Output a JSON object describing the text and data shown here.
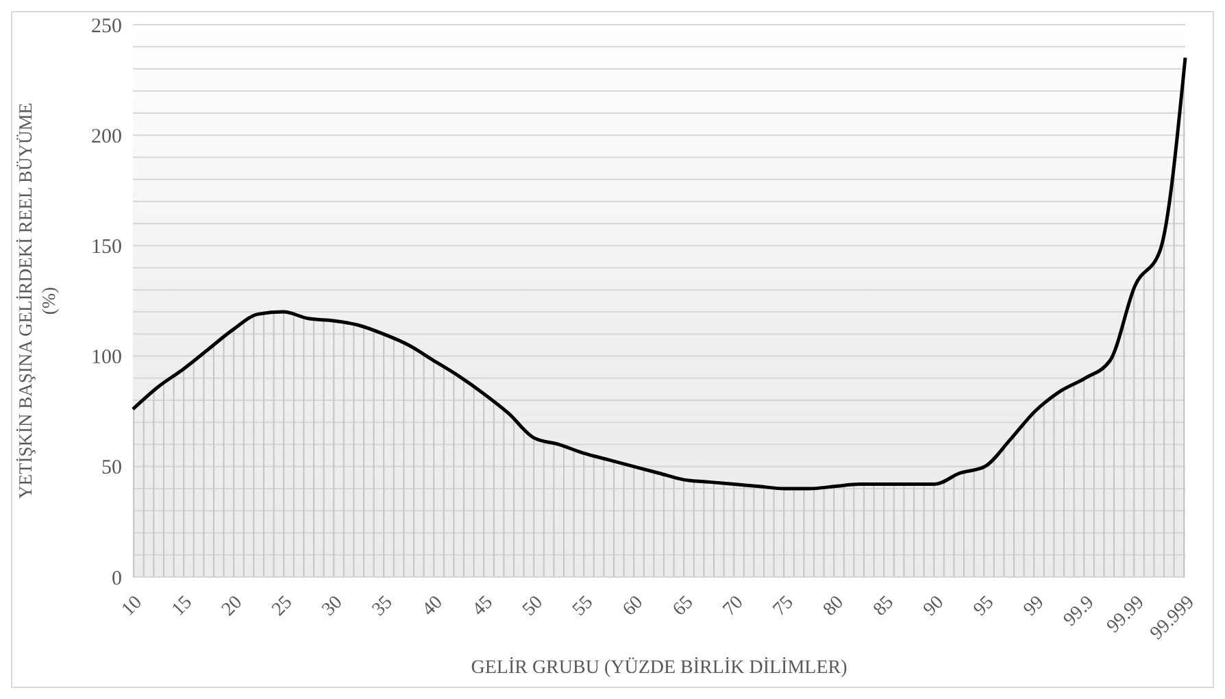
{
  "chart_data": {
    "type": "area",
    "xlabel": "GELİR GRUBU (YÜZDE BİRLİK DİLİMLER)",
    "ylabel": "YETİŞKİN BAŞINA GELİRDEKİ REEL BÜYÜME (%)",
    "categories": [
      "10",
      null,
      "15",
      null,
      "20",
      null,
      "25",
      null,
      "30",
      null,
      "35",
      null,
      "40",
      null,
      "45",
      null,
      "50",
      null,
      "55",
      null,
      "60",
      null,
      "65",
      null,
      "70",
      null,
      "75",
      null,
      "80",
      null,
      "85",
      null,
      "90",
      null,
      "95",
      null,
      "99",
      null,
      "99.9",
      null,
      "99.99",
      null,
      "99.999"
    ],
    "series": [
      {
        "color": "#000000",
        "values": [
          76,
          86,
          94,
          103,
          112,
          119,
          120,
          117,
          116,
          114,
          110,
          105,
          98,
          91,
          83,
          74,
          63,
          60,
          56,
          53,
          50,
          47,
          44,
          43,
          42,
          41,
          40,
          40,
          41,
          42,
          42,
          42,
          42,
          47,
          50,
          62,
          75,
          84,
          90,
          98,
          132,
          148,
          235
        ]
      }
    ],
    "ylim": [
      0,
      250
    ],
    "yticks": [
      0,
      {
        "value": 10,
        "label": null
      },
      {
        "value": 20,
        "label": null
      },
      {
        "value": 30,
        "label": null
      },
      {
        "value": 40,
        "label": null
      },
      50,
      {
        "value": 60,
        "label": null
      },
      {
        "value": 70,
        "label": null
      },
      {
        "value": 80,
        "label": null
      },
      {
        "value": 90,
        "label": null
      },
      100,
      {
        "value": 110,
        "label": null
      },
      {
        "value": 120,
        "label": null
      },
      {
        "value": 130,
        "label": null
      },
      {
        "value": 140,
        "label": null
      },
      150,
      {
        "value": 160,
        "label": null
      },
      {
        "value": 170,
        "label": null
      },
      {
        "value": 180,
        "label": null
      },
      {
        "value": 190,
        "label": null
      },
      200,
      {
        "value": 210,
        "label": null
      },
      {
        "value": 220,
        "label": null
      },
      {
        "value": 230,
        "label": null
      },
      {
        "value": 240,
        "label": null
      },
      250
    ],
    "grid": "y",
    "legend": false
  }
}
